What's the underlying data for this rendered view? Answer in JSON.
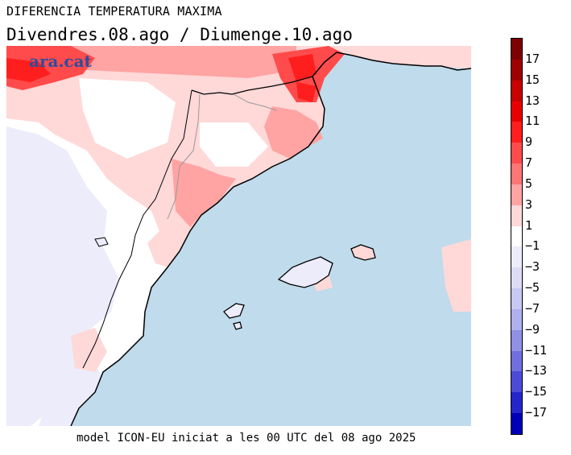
{
  "header": {
    "title": "DIFERENCIA TEMPERATURA MAXIMA",
    "subtitle": "Divendres.08.ago / Diumenge.10.ago"
  },
  "brand": "ara.cat",
  "footer": "model ICON-EU iniciat a les 00 UTC del 08 ago 2025",
  "colorbar": {
    "bins": [
      {
        "range": [
          17,
          19
        ],
        "color": "#7f0000"
      },
      {
        "range": [
          15,
          17
        ],
        "color": "#a00000"
      },
      {
        "range": [
          13,
          15
        ],
        "color": "#c80000"
      },
      {
        "range": [
          11,
          13
        ],
        "color": "#e80000"
      },
      {
        "range": [
          9,
          11
        ],
        "color": "#ff1e1e"
      },
      {
        "range": [
          7,
          9
        ],
        "color": "#ff4b4b"
      },
      {
        "range": [
          5,
          7
        ],
        "color": "#ff7474"
      },
      {
        "range": [
          3,
          5
        ],
        "color": "#ffa3a3"
      },
      {
        "range": [
          1,
          3
        ],
        "color": "#ffd8d8"
      },
      {
        "range": [
          -1,
          1
        ],
        "color": "#ffffff"
      },
      {
        "range": [
          -3,
          -1
        ],
        "color": "#ececfb"
      },
      {
        "range": [
          -5,
          -3
        ],
        "color": "#dcdcf7"
      },
      {
        "range": [
          -7,
          -5
        ],
        "color": "#c8c8f4"
      },
      {
        "range": [
          -9,
          -7
        ],
        "color": "#b0b0ee"
      },
      {
        "range": [
          -11,
          -9
        ],
        "color": "#9090e6"
      },
      {
        "range": [
          -13,
          -11
        ],
        "color": "#6f6fdd"
      },
      {
        "range": [
          -15,
          -13
        ],
        "color": "#4b4bd8"
      },
      {
        "range": [
          -17,
          -15
        ],
        "color": "#2525cc"
      },
      {
        "range": [
          -19,
          -17
        ],
        "color": "#0000b8"
      }
    ],
    "ticks": [
      "17",
      "15",
      "13",
      "11",
      "9",
      "7",
      "5",
      "3",
      "1",
      "−1",
      "−3",
      "−5",
      "−7",
      "−9",
      "−11",
      "−13",
      "−15",
      "−17"
    ]
  },
  "map_colors": {
    "sea": "#bfdbec",
    "land_neutral": "#ffffff",
    "land_cooler": "#ececfb",
    "warm_light": "#ffd8d8",
    "warm_mid": "#ffa3a3",
    "warm_strong": "#ff4b4b",
    "warm_peak": "#ff1e1e",
    "coastline": "#000000",
    "borders": "#9a9a9a"
  }
}
